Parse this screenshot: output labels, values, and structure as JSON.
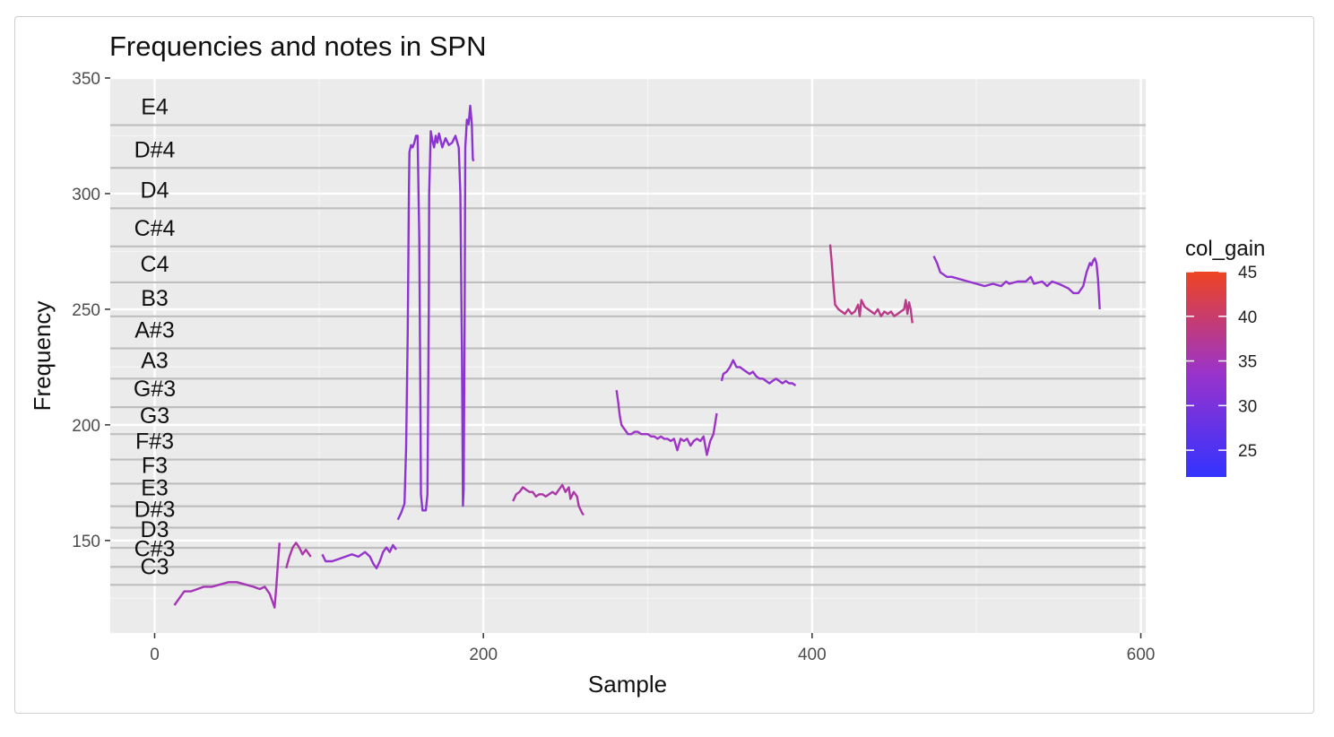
{
  "chart_data": {
    "type": "line",
    "title": "Frequencies and notes in SPN",
    "xlabel": "Sample",
    "ylabel": "Frequency",
    "xlim": [
      -27,
      603
    ],
    "ylim": [
      110,
      350
    ],
    "xticks": [
      0,
      200,
      400,
      600
    ],
    "yticks": [
      150,
      200,
      250,
      300,
      350
    ],
    "grid": true,
    "panel_background": "#EBEBEB",
    "note_line_color": "#BEBEBE",
    "notes": [
      {
        "name": "C3",
        "freq": 130.81
      },
      {
        "name": "C#3",
        "freq": 138.59
      },
      {
        "name": "D3",
        "freq": 146.83
      },
      {
        "name": "D#3",
        "freq": 155.56
      },
      {
        "name": "E3",
        "freq": 164.81
      },
      {
        "name": "F3",
        "freq": 174.61
      },
      {
        "name": "F#3",
        "freq": 185.0
      },
      {
        "name": "G3",
        "freq": 196.0
      },
      {
        "name": "G#3",
        "freq": 207.65
      },
      {
        "name": "A3",
        "freq": 220.0
      },
      {
        "name": "A#3",
        "freq": 233.08
      },
      {
        "name": "B3",
        "freq": 246.94
      },
      {
        "name": "C4",
        "freq": 261.63
      },
      {
        "name": "C#4",
        "freq": 277.18
      },
      {
        "name": "D4",
        "freq": 293.66
      },
      {
        "name": "D#4",
        "freq": 311.13
      },
      {
        "name": "E4",
        "freq": 329.63
      }
    ],
    "legend": {
      "title": "col_gain",
      "position": "right",
      "range": [
        22,
        45
      ],
      "ticks": [
        25,
        30,
        35,
        40,
        45
      ],
      "low_color": "#3333FF",
      "mid_color": "#9933CC",
      "high_color": "#EE4422"
    },
    "series": [
      {
        "gain": 35,
        "points": [
          [
            12,
            122
          ],
          [
            15,
            125
          ],
          [
            18,
            128
          ],
          [
            22,
            128
          ],
          [
            26,
            129
          ],
          [
            30,
            130
          ],
          [
            35,
            130
          ],
          [
            40,
            131
          ],
          [
            45,
            132
          ],
          [
            50,
            132
          ],
          [
            55,
            131
          ],
          [
            60,
            130
          ],
          [
            64,
            129
          ],
          [
            67,
            130
          ],
          [
            70,
            127
          ],
          [
            72,
            123
          ],
          [
            73,
            121
          ],
          [
            74,
            130
          ],
          [
            75,
            140
          ],
          [
            76,
            149
          ]
        ]
      },
      {
        "gain": 36,
        "points": [
          [
            80,
            138
          ],
          [
            82,
            143
          ],
          [
            84,
            147
          ],
          [
            86,
            149
          ],
          [
            88,
            147
          ],
          [
            90,
            144
          ],
          [
            92,
            146
          ],
          [
            95,
            143
          ]
        ]
      },
      {
        "gain": 33,
        "points": [
          [
            102,
            144
          ],
          [
            104,
            141
          ],
          [
            108,
            141
          ],
          [
            112,
            142
          ],
          [
            116,
            143
          ],
          [
            120,
            144
          ],
          [
            124,
            143
          ],
          [
            128,
            145
          ],
          [
            131,
            143
          ],
          [
            133,
            140
          ],
          [
            135,
            138
          ],
          [
            137,
            141
          ],
          [
            139,
            145
          ],
          [
            141,
            147
          ],
          [
            143,
            145
          ],
          [
            145,
            148
          ],
          [
            147,
            146
          ]
        ]
      },
      {
        "gain": 32,
        "points": [
          [
            148,
            159
          ],
          [
            150,
            162
          ],
          [
            152,
            166
          ],
          [
            153,
            190
          ],
          [
            154,
            240
          ],
          [
            154.7,
            300
          ],
          [
            155,
            318
          ],
          [
            156,
            321
          ],
          [
            157,
            320
          ],
          [
            158,
            322
          ],
          [
            159,
            325
          ],
          [
            160,
            325
          ],
          [
            161,
            280
          ],
          [
            161.8,
            200
          ],
          [
            162,
            170
          ],
          [
            163,
            163
          ],
          [
            164,
            163
          ],
          [
            165,
            163
          ],
          [
            166,
            170
          ],
          [
            166.8,
            250
          ],
          [
            167,
            300
          ],
          [
            168,
            327
          ],
          [
            169,
            323
          ],
          [
            170,
            320
          ],
          [
            171,
            325
          ],
          [
            172,
            322
          ],
          [
            173,
            326
          ],
          [
            175,
            320
          ],
          [
            177,
            324
          ],
          [
            179,
            321
          ],
          [
            181,
            322
          ],
          [
            183,
            325
          ],
          [
            185,
            320
          ],
          [
            186,
            300
          ],
          [
            187,
            230
          ],
          [
            187.6,
            165
          ],
          [
            188,
            172
          ],
          [
            188.6,
            250
          ],
          [
            189,
            320
          ],
          [
            190,
            332
          ],
          [
            191,
            330
          ],
          [
            192,
            338
          ],
          [
            193,
            330
          ],
          [
            193.6,
            315
          ],
          [
            194,
            314
          ]
        ]
      },
      {
        "gain": 36,
        "points": [
          [
            218,
            167
          ],
          [
            220,
            170
          ],
          [
            222,
            171
          ],
          [
            224,
            173
          ],
          [
            226,
            172
          ],
          [
            228,
            171
          ],
          [
            230,
            171
          ],
          [
            232,
            169
          ],
          [
            234,
            170
          ],
          [
            236,
            170
          ],
          [
            238,
            169
          ],
          [
            240,
            170
          ],
          [
            242,
            171
          ],
          [
            244,
            170
          ],
          [
            246,
            172
          ],
          [
            248,
            174
          ],
          [
            250,
            171
          ],
          [
            252,
            173
          ],
          [
            253,
            168
          ],
          [
            255,
            171
          ],
          [
            257,
            169
          ],
          [
            258,
            165
          ],
          [
            260,
            162
          ],
          [
            261,
            161
          ]
        ]
      },
      {
        "gain": 34,
        "points": [
          [
            281,
            215
          ],
          [
            282,
            210
          ],
          [
            283,
            204
          ],
          [
            284,
            200
          ],
          [
            286,
            198
          ],
          [
            288,
            196
          ],
          [
            290,
            196
          ],
          [
            292,
            197
          ],
          [
            294,
            197
          ],
          [
            296,
            196
          ],
          [
            298,
            196
          ],
          [
            300,
            196
          ],
          [
            302,
            195
          ],
          [
            304,
            195
          ],
          [
            306,
            194
          ],
          [
            308,
            195
          ],
          [
            310,
            194
          ],
          [
            312,
            194
          ],
          [
            314,
            193
          ],
          [
            316,
            194
          ],
          [
            318,
            189
          ],
          [
            320,
            194
          ],
          [
            322,
            193
          ],
          [
            324,
            194
          ],
          [
            326,
            191
          ],
          [
            328,
            193
          ],
          [
            330,
            194
          ],
          [
            332,
            193
          ],
          [
            334,
            195
          ],
          [
            336,
            187
          ],
          [
            338,
            193
          ],
          [
            340,
            196
          ],
          [
            342,
            205
          ]
        ]
      },
      {
        "gain": 33,
        "points": [
          [
            345,
            219
          ],
          [
            346,
            222
          ],
          [
            348,
            223
          ],
          [
            350,
            225
          ],
          [
            352,
            228
          ],
          [
            354,
            225
          ],
          [
            356,
            225
          ],
          [
            358,
            224
          ],
          [
            360,
            223
          ],
          [
            362,
            222
          ],
          [
            364,
            223
          ],
          [
            366,
            221
          ],
          [
            368,
            220
          ],
          [
            370,
            220
          ],
          [
            372,
            219
          ],
          [
            374,
            218
          ],
          [
            376,
            219
          ],
          [
            378,
            220
          ],
          [
            380,
            219
          ],
          [
            382,
            218
          ],
          [
            384,
            219
          ],
          [
            386,
            218
          ],
          [
            388,
            218
          ],
          [
            390,
            217
          ]
        ]
      },
      {
        "gain": 38,
        "points": [
          [
            411,
            278
          ],
          [
            412,
            270
          ],
          [
            413,
            260
          ],
          [
            414,
            252
          ],
          [
            416,
            250
          ],
          [
            418,
            249
          ],
          [
            420,
            248
          ],
          [
            422,
            250
          ],
          [
            424,
            248
          ],
          [
            426,
            249
          ],
          [
            428,
            252
          ],
          [
            429,
            247
          ],
          [
            430,
            254
          ],
          [
            432,
            251
          ],
          [
            434,
            250
          ],
          [
            436,
            249
          ],
          [
            438,
            248
          ],
          [
            440,
            250
          ],
          [
            442,
            247
          ],
          [
            444,
            249
          ],
          [
            446,
            248
          ],
          [
            448,
            249
          ],
          [
            450,
            247
          ],
          [
            452,
            248
          ],
          [
            454,
            249
          ],
          [
            456,
            250
          ],
          [
            457,
            254
          ],
          [
            458,
            248
          ],
          [
            459,
            253
          ],
          [
            460,
            250
          ],
          [
            461,
            244
          ]
        ]
      },
      {
        "gain": 33,
        "points": [
          [
            474,
            273
          ],
          [
            476,
            270
          ],
          [
            478,
            266
          ],
          [
            480,
            265
          ],
          [
            482,
            264
          ],
          [
            485,
            264
          ],
          [
            490,
            263
          ],
          [
            495,
            262
          ],
          [
            500,
            261
          ],
          [
            505,
            260
          ],
          [
            510,
            261
          ],
          [
            515,
            260
          ],
          [
            518,
            262
          ],
          [
            520,
            261
          ],
          [
            525,
            262
          ],
          [
            530,
            262
          ],
          [
            533,
            264
          ],
          [
            535,
            261
          ],
          [
            540,
            262
          ],
          [
            543,
            260
          ],
          [
            546,
            262
          ],
          [
            550,
            261
          ],
          [
            553,
            260
          ],
          [
            556,
            259
          ],
          [
            559,
            257
          ],
          [
            562,
            257
          ],
          [
            565,
            260
          ],
          [
            567,
            266
          ],
          [
            569,
            270
          ],
          [
            570,
            269
          ],
          [
            571,
            271
          ],
          [
            572,
            272
          ],
          [
            573,
            270
          ],
          [
            574,
            263
          ],
          [
            575,
            250
          ]
        ]
      }
    ]
  }
}
